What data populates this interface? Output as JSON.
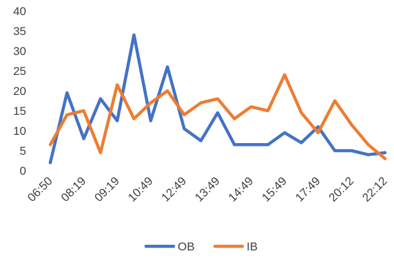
{
  "chart_data": {
    "type": "line",
    "x": [
      "06:50",
      "",
      "08:19",
      "",
      "09:19",
      "",
      "10:49",
      "",
      "12:49",
      "",
      "13:49",
      "",
      "14:49",
      "",
      "15:49",
      "",
      "17:49",
      "",
      "20:12",
      "",
      "22:12"
    ],
    "y_ticks": [
      "0",
      "5",
      "10",
      "15",
      "20",
      "25",
      "30",
      "35",
      "40"
    ],
    "ylim": [
      0,
      40
    ],
    "grid": false,
    "legend_position": "bottom",
    "series": [
      {
        "name": "OB",
        "color": "#4472C4",
        "values": [
          2,
          19.5,
          8,
          18,
          12.5,
          34,
          12.5,
          26,
          10.5,
          7.5,
          14.5,
          6.5,
          6.5,
          6.5,
          9.5,
          7,
          11,
          5,
          5,
          4,
          4.5
        ]
      },
      {
        "name": "IB",
        "color": "#ED7D31",
        "values": [
          6.5,
          14,
          15,
          4.5,
          21.5,
          13,
          17,
          20,
          14,
          17,
          18,
          13,
          16,
          15,
          24,
          14.5,
          9.5,
          17.5,
          11.5,
          6.5,
          3
        ]
      }
    ]
  }
}
